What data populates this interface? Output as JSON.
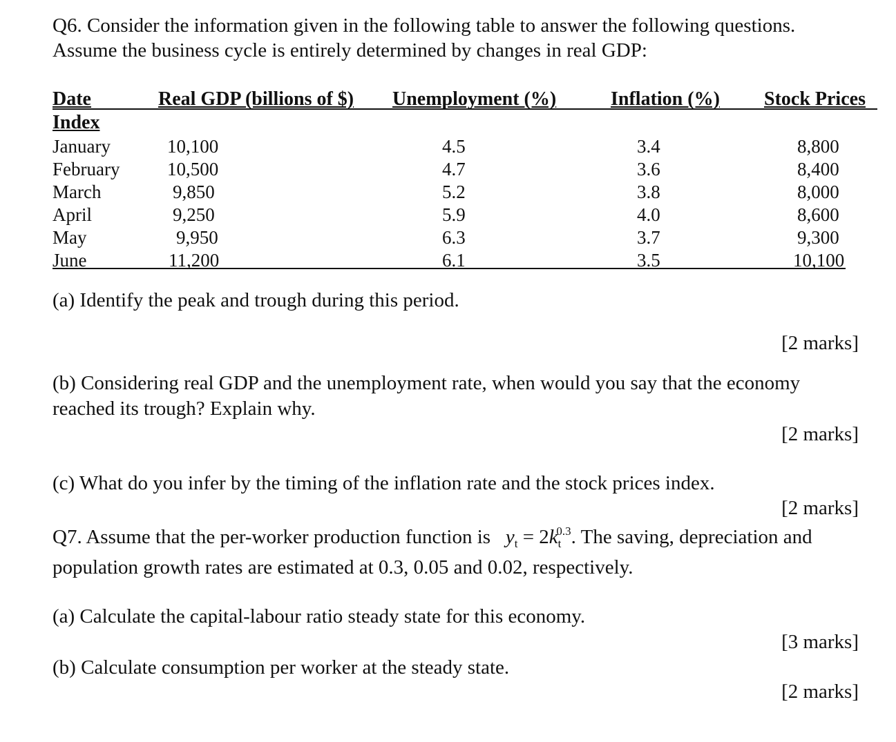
{
  "q6": {
    "intro_line1": "Q6. Consider the information given in the following table to answer the following questions.",
    "intro_line2": "Assume the business cycle is entirely determined by changes in real GDP:"
  },
  "table": {
    "headers": {
      "date": "Date",
      "gdp": "Real GDP (billions of $)",
      "unemployment": "Unemployment (%)",
      "inflation": "Inflation (%)",
      "stock": "Stock Prices",
      "index": "Index"
    },
    "rows": [
      {
        "month": "January",
        "gdp": "10,100",
        "unemployment": "4.5",
        "inflation": "3.4",
        "stock": "8,800"
      },
      {
        "month": "February",
        "gdp": "10,500",
        "unemployment": "4.7",
        "inflation": "3.6",
        "stock": "8,400"
      },
      {
        "month": "March",
        "gdp": "9,850",
        "unemployment": "5.2",
        "inflation": "3.8",
        "stock": "8,000"
      },
      {
        "month": "April",
        "gdp": "9,250",
        "unemployment": "5.9",
        "inflation": "4.0",
        "stock": "8,600"
      },
      {
        "month": "May",
        "gdp": "9,950",
        "unemployment": "6.3",
        "inflation": "3.7",
        "stock": "9,300"
      },
      {
        "month": "June",
        "gdp": "11,200",
        "unemployment": "6.1",
        "inflation": "3.5",
        "stock": "10,100"
      }
    ]
  },
  "q6_parts": {
    "a": "(a) Identify the peak and trough during this period.",
    "a_marks": "[2 marks]",
    "b_line1": "(b) Considering real GDP and the unemployment rate, when would you say that the economy",
    "b_line2": "reached its trough? Explain why.",
    "b_marks": "[2 marks]",
    "c": "(c) What do you infer by the timing of the inflation rate and the stock prices index.",
    "c_marks": "[2 marks]"
  },
  "q7": {
    "intro_before": "Q7. Assume that the per-worker production function is",
    "eq_y": "y",
    "eq_t": "t",
    "eq_mid": " = 2",
    "eq_k": "k",
    "eq_exp": "0.3",
    "intro_after": ". The saving, depreciation and",
    "intro_line2": "population growth rates are estimated at 0.3, 0.05 and 0.02, respectively.",
    "a": "(a) Calculate the capital-labour ratio steady state for this economy.",
    "a_marks": "[3 marks]",
    "b": "(b) Calculate consumption per worker at the steady state.",
    "b_marks": "[2 marks]"
  }
}
